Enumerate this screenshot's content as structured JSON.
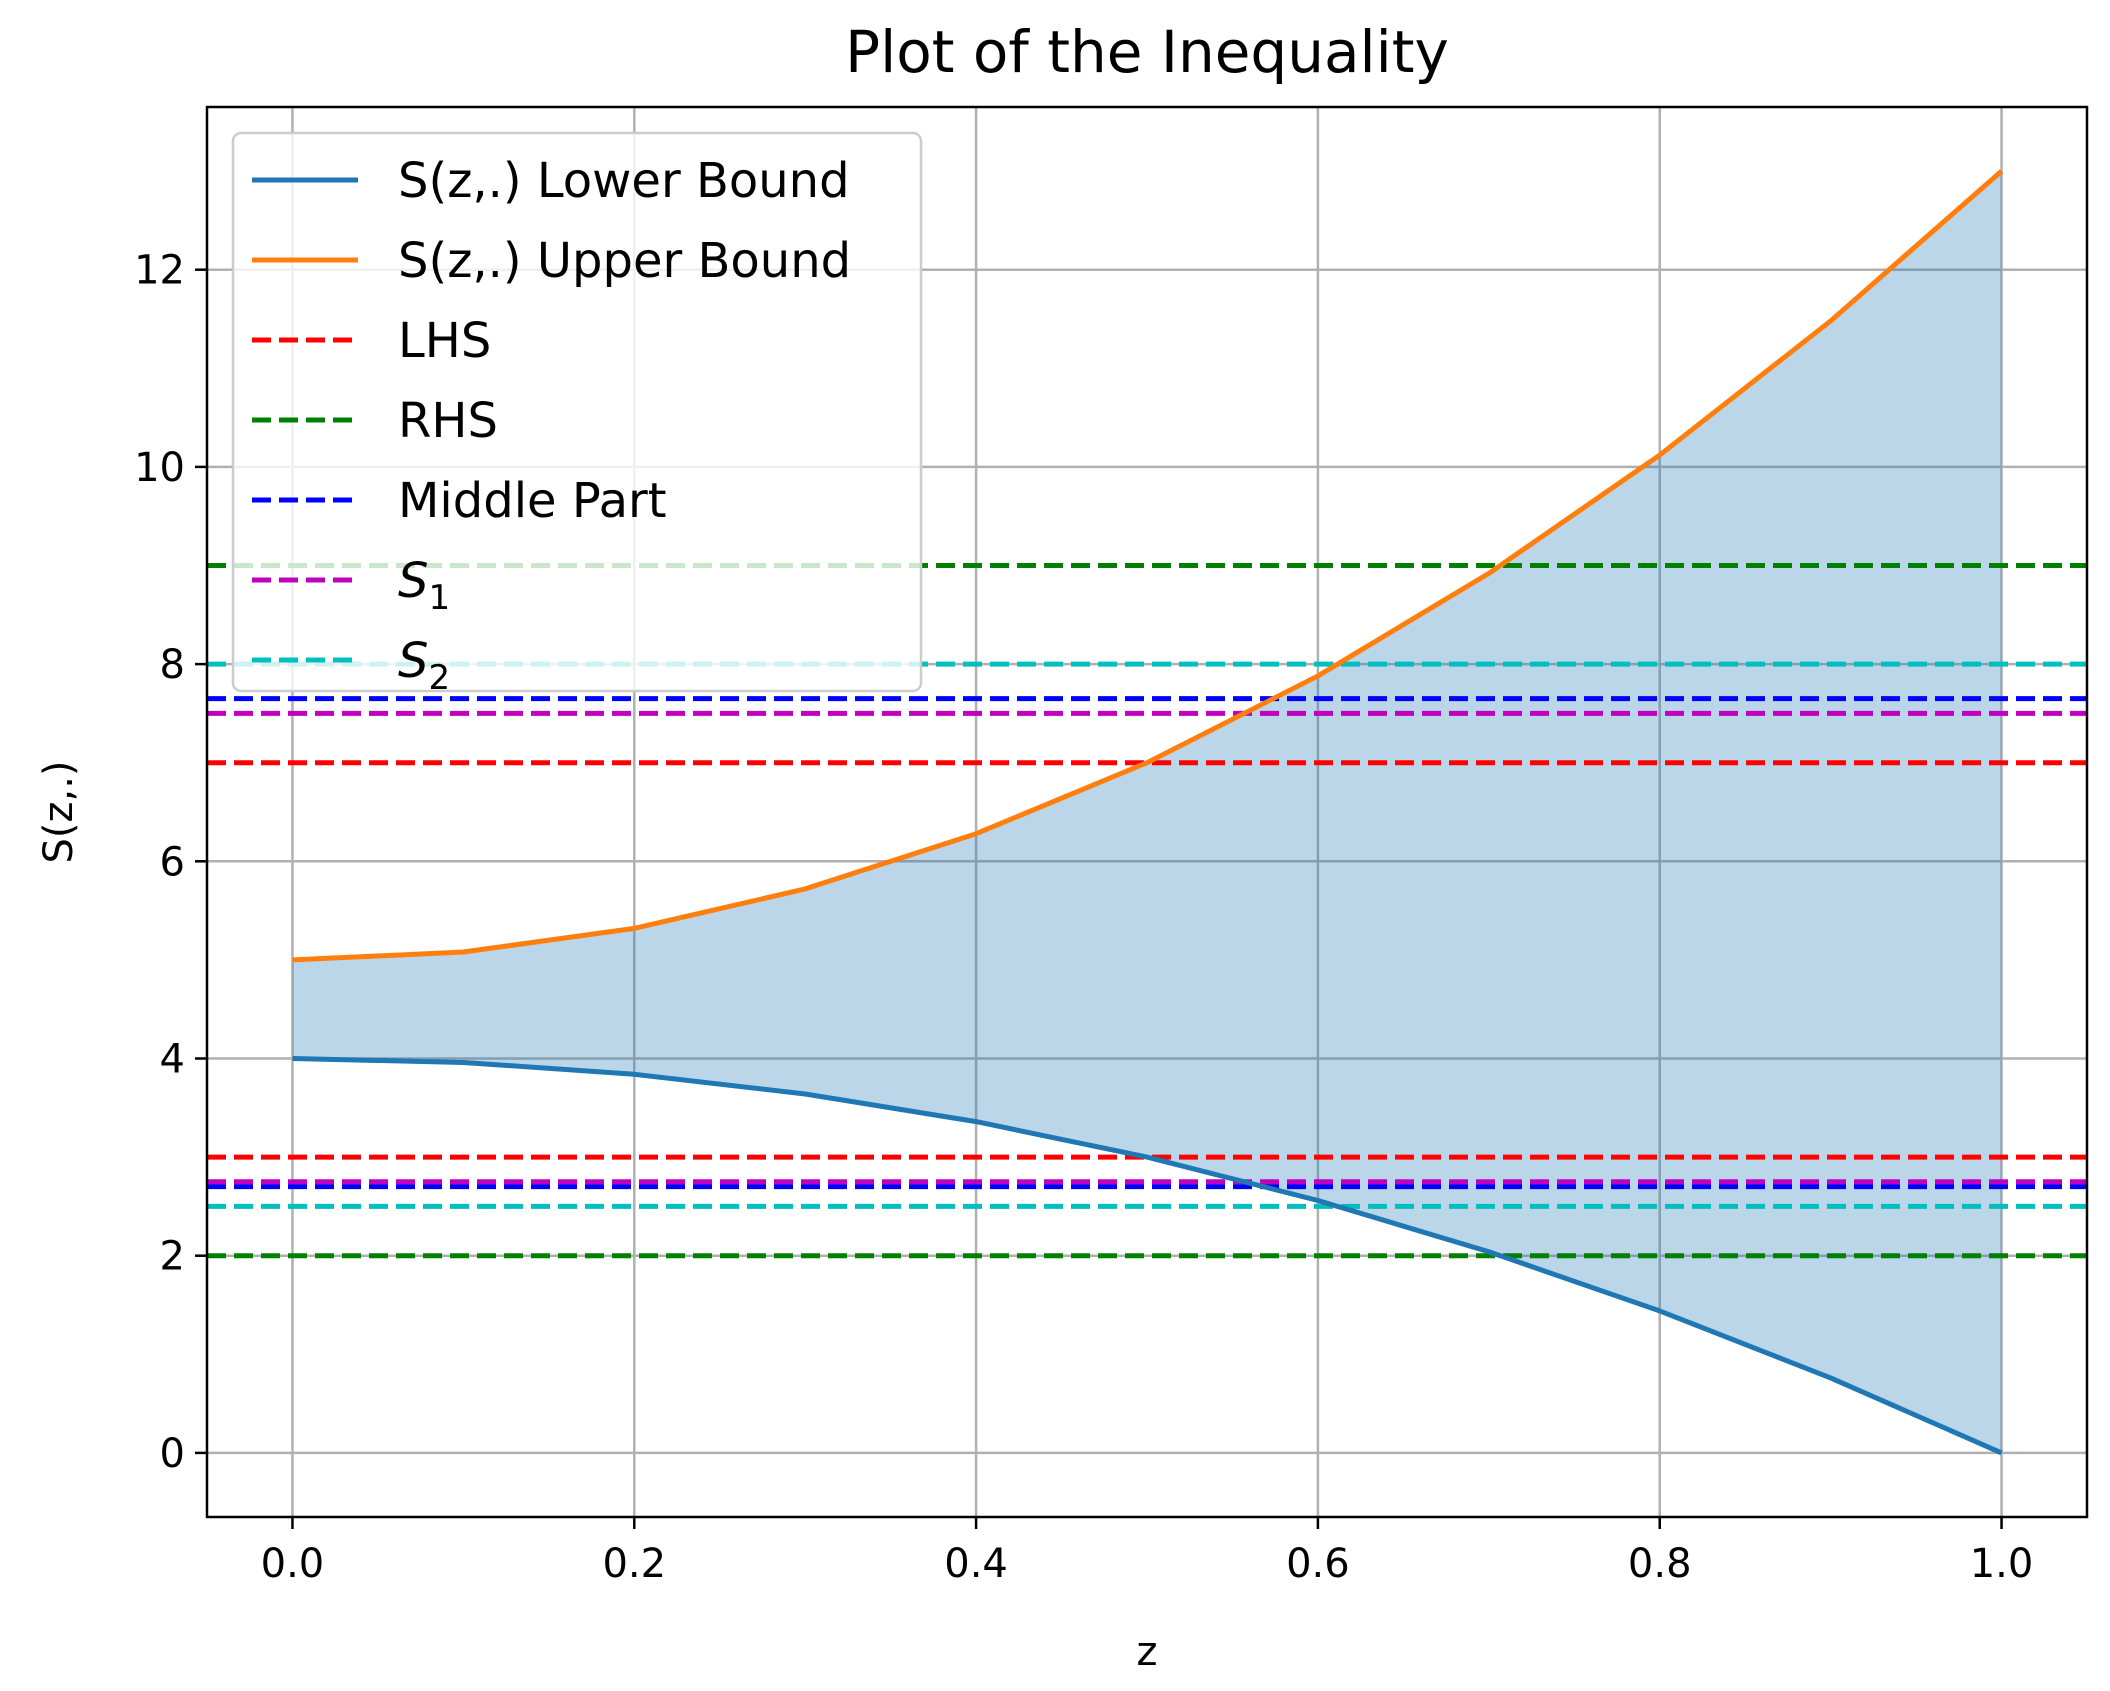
{
  "chart_data": {
    "type": "line",
    "title": "Plot of the Inequality",
    "xlabel": "z",
    "ylabel": "S(z,.)",
    "xlim": [
      -0.05,
      1.05
    ],
    "ylim": [
      -0.65,
      13.65
    ],
    "xticks": [
      0.0,
      0.2,
      0.4,
      0.6,
      0.8,
      1.0
    ],
    "xtick_labels": [
      "0.0",
      "0.2",
      "0.4",
      "0.6",
      "0.8",
      "1.0"
    ],
    "yticks": [
      0,
      2,
      4,
      6,
      8,
      10,
      12
    ],
    "ytick_labels": [
      "0",
      "2",
      "4",
      "6",
      "8",
      "10",
      "12"
    ],
    "grid": true,
    "legend_position": "top-left",
    "curves": [
      {
        "name": "S(z,.) Lower Bound",
        "color": "#1f77b4",
        "x": [
          0.0,
          0.1,
          0.2,
          0.3,
          0.4,
          0.5,
          0.6,
          0.7,
          0.8,
          0.9,
          1.0
        ],
        "y": [
          4.0,
          3.96,
          3.84,
          3.64,
          3.36,
          3.0,
          2.56,
          2.04,
          1.44,
          0.76,
          0.0
        ]
      },
      {
        "name": "S(z,.) Upper Bound",
        "color": "#ff7f0e",
        "x": [
          0.0,
          0.1,
          0.2,
          0.3,
          0.4,
          0.5,
          0.6,
          0.7,
          0.8,
          0.9,
          1.0
        ],
        "y": [
          5.0,
          5.08,
          5.32,
          5.72,
          6.28,
          7.0,
          7.88,
          8.92,
          10.12,
          11.48,
          13.0
        ]
      }
    ],
    "fill_between": {
      "lower": "S(z,.) Lower Bound",
      "upper": "S(z,.) Upper Bound",
      "color": "#1f77b4",
      "opacity": 0.3
    },
    "hlines": [
      {
        "name": "LHS",
        "color": "#ff0000",
        "values": [
          7.0,
          3.0
        ]
      },
      {
        "name": "RHS",
        "color": "#008000",
        "values": [
          9.0,
          2.0
        ]
      },
      {
        "name": "Middle Part",
        "color": "#0000ff",
        "values": [
          7.65,
          2.7
        ]
      },
      {
        "name": "S",
        "subscript": "1",
        "color": "#bf00bf",
        "values": [
          7.5,
          2.75
        ]
      },
      {
        "name": "S",
        "subscript": "2",
        "color": "#00bfbf",
        "values": [
          8.0,
          2.5
        ]
      }
    ]
  }
}
